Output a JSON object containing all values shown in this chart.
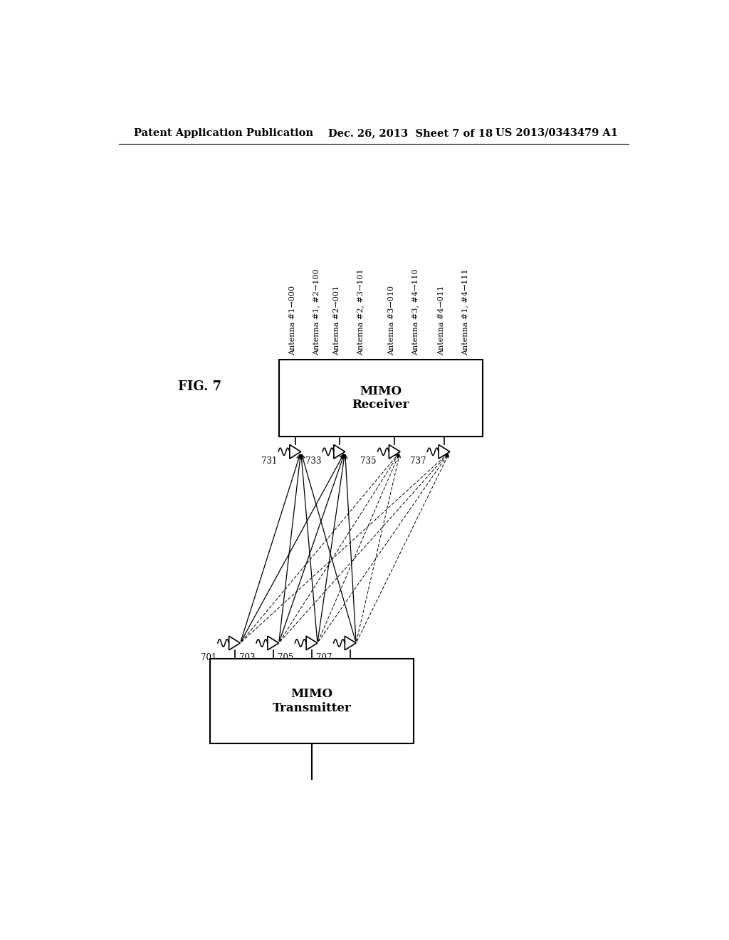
{
  "bg_color": "#ffffff",
  "header_left": "Patent Application Publication",
  "header_mid": "Dec. 26, 2013  Sheet 7 of 18",
  "header_right": "US 2013/0343479 A1",
  "fig_label": "FIG. 7",
  "header_fontsize": 10.5,
  "tx_box_label": "MIMO\nTransmitter",
  "rx_box_label": "MIMO\nReceiver",
  "tx_ant_labels": [
    "701",
    "703",
    "705",
    "707"
  ],
  "rx_ant_labels": [
    "731",
    "733",
    "735",
    "737"
  ],
  "rx_col_labels_inner": [
    "Antenna #1→000",
    "Antenna #2→001",
    "Antenna #3→010",
    "Antenna #4→011"
  ],
  "rx_col_labels_outer": [
    "Antenna #1, #2→100",
    "Antenna #2, #3→101",
    "Antenna #3, #4→110",
    "Antenna #1, #4→111"
  ]
}
